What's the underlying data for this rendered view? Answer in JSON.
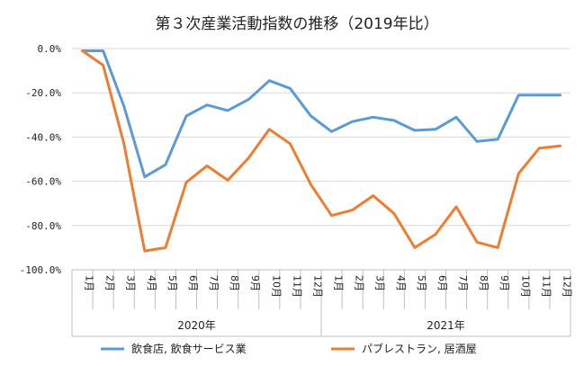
{
  "chart_data": {
    "type": "line",
    "title": "第３次産業活動指数の推移（2019年比）",
    "categories": [
      "1月",
      "2月",
      "3月",
      "4月",
      "5月",
      "6月",
      "7月",
      "8月",
      "9月",
      "10月",
      "11月",
      "12月",
      "1月",
      "2月",
      "3月",
      "4月",
      "5月",
      "6月",
      "7月",
      "8月",
      "9月",
      "10月",
      "11月",
      "12月"
    ],
    "year_groups": [
      {
        "label": "2020年",
        "start": 0,
        "end": 11
      },
      {
        "label": "2021年",
        "start": 12,
        "end": 23
      }
    ],
    "yticks": [
      "0.0%",
      "-20.0%",
      "-40.0%",
      "-60.0%",
      "-80.0%",
      "-100.0%"
    ],
    "ylim": [
      -100,
      0
    ],
    "grid": true,
    "legend_position": "bottom",
    "series": [
      {
        "name": "飲食店, 飲食サービス業",
        "color": "#5b9bd5",
        "values": [
          -1,
          -1,
          -26,
          -58,
          -52.5,
          -30.5,
          -25.5,
          -28,
          -23,
          -14.5,
          -18,
          -30.5,
          -37.5,
          -33,
          -31,
          -32.5,
          -37,
          -36.5,
          -31,
          -42,
          -41,
          -21,
          -21,
          -21
        ]
      },
      {
        "name": "パブレストラン, 居酒屋",
        "color": "#ed7d31",
        "values": [
          -1,
          -7.5,
          -43,
          -91.5,
          -90,
          -60.5,
          -53,
          -59.5,
          -49.5,
          -36.5,
          -43,
          -61.5,
          -75.5,
          -73,
          -66.5,
          -74.5,
          -90,
          -84,
          -71.5,
          -87.5,
          -90,
          -56.5,
          -45,
          -44
        ]
      }
    ]
  }
}
